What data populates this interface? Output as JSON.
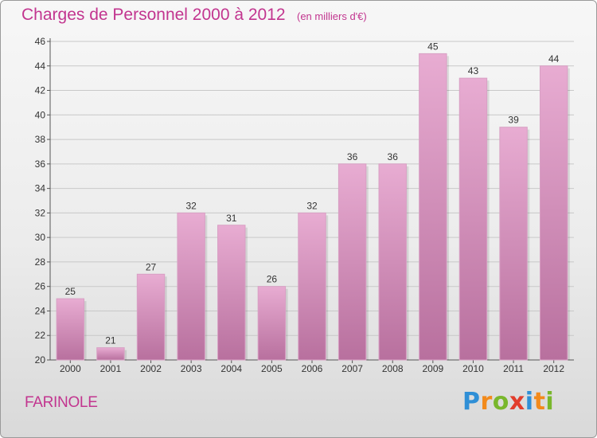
{
  "header": {
    "title": "Charges de Personnel 2000 à 2012",
    "subtitle": "(en milliers d'€)"
  },
  "footer": {
    "commune": "FARINOLE",
    "logo_letters": [
      "P",
      "r",
      "o",
      "x",
      "i",
      "t",
      "i"
    ]
  },
  "colors": {
    "title": "#c2358f",
    "bar_top": "#e8acd2",
    "bar_bottom": "#b8709e",
    "logo": [
      "#2f8fd6",
      "#f28a1b",
      "#79b72c",
      "#e23d2c",
      "#2f8fd6",
      "#f28a1b",
      "#79b72c"
    ]
  },
  "chart_data": {
    "type": "bar",
    "title": "Charges de Personnel 2000 à 2012",
    "categories": [
      "2000",
      "2001",
      "2002",
      "2003",
      "2004",
      "2005",
      "2006",
      "2007",
      "2008",
      "2009",
      "2010",
      "2011",
      "2012"
    ],
    "values": [
      25,
      21,
      27,
      32,
      31,
      26,
      32,
      36,
      36,
      45,
      43,
      39,
      44
    ],
    "ylim": [
      20,
      46
    ],
    "yticks": [
      20,
      22,
      24,
      26,
      28,
      30,
      32,
      34,
      36,
      38,
      40,
      42,
      44,
      46
    ],
    "xlabel": "",
    "ylabel": "",
    "grid": true,
    "data_labels": true
  }
}
